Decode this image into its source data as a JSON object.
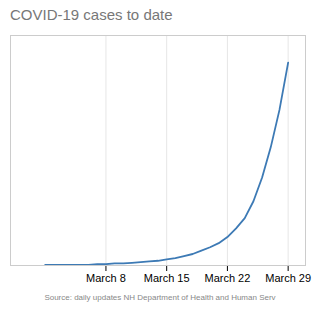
{
  "chart_data": {
    "type": "line",
    "title": "COVID-19 cases to date",
    "caption": "Source: daily updates NH Department of Health and Human Serv",
    "x": [
      0,
      1,
      2,
      3,
      4,
      5,
      6,
      7,
      8,
      9,
      10,
      11,
      12,
      13,
      14,
      15,
      16,
      17,
      18,
      19,
      20,
      21,
      22,
      23,
      24,
      25,
      26,
      27,
      28
    ],
    "values": [
      1,
      1,
      1,
      1,
      1,
      1,
      2,
      2,
      3,
      3,
      4,
      5,
      6,
      7,
      9,
      11,
      14,
      17,
      22,
      27,
      33,
      42,
      55,
      70,
      95,
      130,
      175,
      230,
      300
    ],
    "color": "#3d7ab5",
    "xlim": [
      -4,
      30
    ],
    "xticks": [
      {
        "value": 7,
        "label": "March 8"
      },
      {
        "value": 14,
        "label": "March 15"
      },
      {
        "value": 21,
        "label": "March 22"
      },
      {
        "value": 28,
        "label": "March 29"
      }
    ],
    "ylim": [
      0,
      340
    ],
    "yticks": [],
    "grid": true,
    "tick_labels": "x"
  }
}
